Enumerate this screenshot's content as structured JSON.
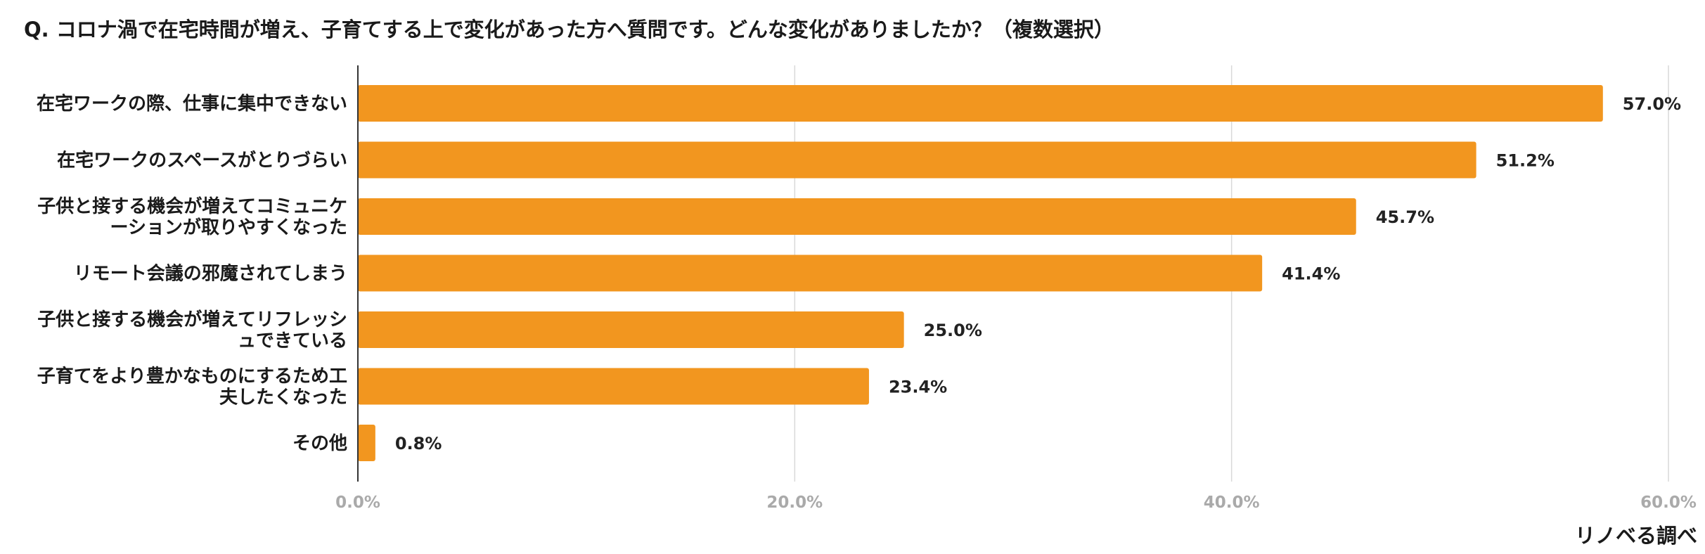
{
  "chart_data": {
    "type": "bar",
    "orientation": "horizontal",
    "title": "Q. コロナ渦で在宅時間が増え、子育てする上で変化があった方へ質問です。どんな変化がありましたか？（複数選択）",
    "categories": [
      [
        "在宅ワークの際、仕事に集中できない"
      ],
      [
        "在宅ワークのスペースがとりづらい"
      ],
      [
        "子供と接する機会が増えてコミュニケ",
        "ーションが取りやすくなった"
      ],
      [
        "リモート会議の邪魔されてしまう"
      ],
      [
        "子供と接する機会が増えてリフレッシ",
        "ュできている"
      ],
      [
        "子育てをより豊かなものにするため工",
        "夫したくなった"
      ],
      [
        "その他"
      ]
    ],
    "values": [
      57.0,
      51.2,
      45.7,
      41.4,
      25.0,
      23.4,
      0.8
    ],
    "value_labels": [
      "57.0%",
      "51.2%",
      "45.7%",
      "41.4%",
      "25.0%",
      "23.4%",
      "0.8%"
    ],
    "xlim": [
      0,
      60
    ],
    "ticks": [
      0,
      20,
      40,
      60
    ],
    "tick_labels": [
      "0.0%",
      "20.0%",
      "40.0%",
      "60.0%"
    ],
    "grid": true,
    "bar_color": "#f2961f",
    "source": "リノベる調べ"
  }
}
